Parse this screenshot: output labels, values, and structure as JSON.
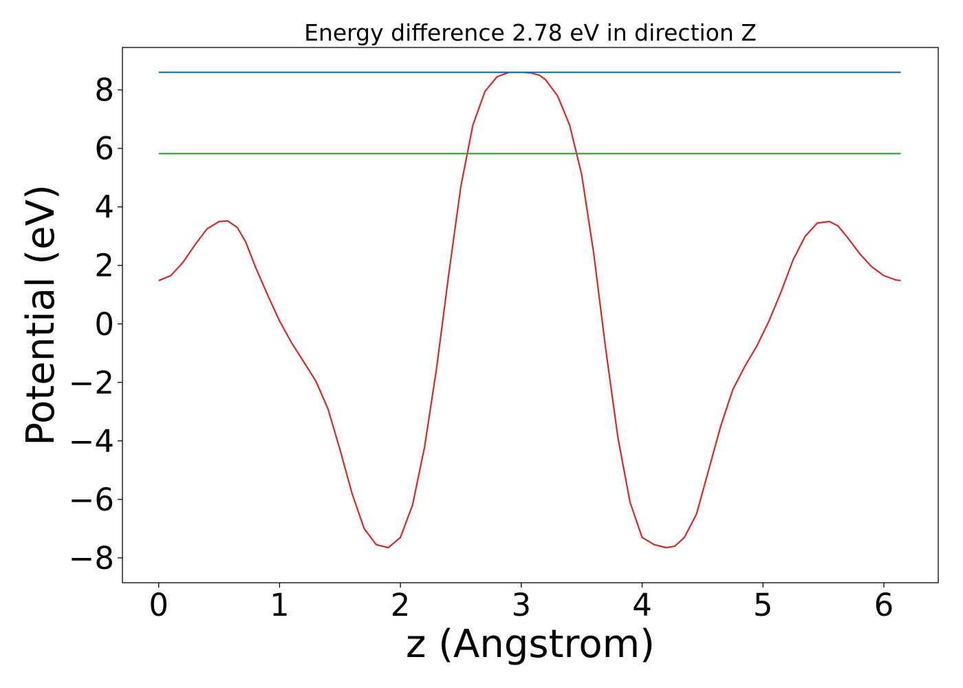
{
  "chart_data": {
    "type": "line",
    "title": "Energy difference 2.78 eV in direction Z",
    "xlabel": "z (Angstrom)",
    "ylabel": "Potential (eV)",
    "xlim": [
      -0.3,
      6.45
    ],
    "ylim": [
      -8.85,
      9.45
    ],
    "xticks": [
      0,
      1,
      2,
      3,
      4,
      5,
      6
    ],
    "xtick_labels": [
      "0",
      "1",
      "2",
      "3",
      "4",
      "5",
      "6"
    ],
    "yticks": [
      -8,
      -6,
      -4,
      -2,
      0,
      2,
      4,
      6,
      8
    ],
    "ytick_labels": [
      "−8",
      "−6",
      "−4",
      "−2",
      "0",
      "2",
      "4",
      "6",
      "8"
    ],
    "grid": false,
    "series": [
      {
        "color": "#d62728",
        "x": [
          0.0,
          0.1,
          0.2,
          0.3,
          0.4,
          0.5,
          0.57,
          0.65,
          0.72,
          0.8,
          0.9,
          1.0,
          1.1,
          1.2,
          1.3,
          1.4,
          1.5,
          1.6,
          1.7,
          1.8,
          1.9,
          2.0,
          2.1,
          2.2,
          2.3,
          2.4,
          2.5,
          2.6,
          2.7,
          2.8,
          2.9,
          3.0,
          3.08,
          3.15,
          3.2,
          3.3,
          3.4,
          3.5,
          3.6,
          3.7,
          3.8,
          3.9,
          4.0,
          4.1,
          4.2,
          4.27,
          4.35,
          4.45,
          4.55,
          4.65,
          4.75,
          4.85,
          4.95,
          5.05,
          5.15,
          5.25,
          5.35,
          5.45,
          5.55,
          5.62,
          5.7,
          5.8,
          5.9,
          6.0,
          6.1,
          6.14
        ],
        "y": [
          1.48,
          1.65,
          2.1,
          2.7,
          3.25,
          3.5,
          3.52,
          3.3,
          2.8,
          1.95,
          1.0,
          0.1,
          -0.65,
          -1.3,
          -1.95,
          -2.9,
          -4.3,
          -5.8,
          -7.0,
          -7.55,
          -7.65,
          -7.3,
          -6.2,
          -4.2,
          -1.5,
          1.7,
          4.7,
          6.8,
          7.95,
          8.45,
          8.6,
          8.6,
          8.58,
          8.5,
          8.35,
          7.8,
          6.8,
          5.1,
          2.4,
          -0.9,
          -3.9,
          -6.1,
          -7.3,
          -7.55,
          -7.65,
          -7.6,
          -7.3,
          -6.5,
          -5.0,
          -3.5,
          -2.25,
          -1.45,
          -0.75,
          0.1,
          1.1,
          2.2,
          3.0,
          3.45,
          3.5,
          3.35,
          2.95,
          2.4,
          1.95,
          1.65,
          1.5,
          1.48
        ]
      },
      {
        "color": "#1f77b4",
        "x": [
          0.0,
          6.14
        ],
        "y": [
          8.6,
          8.6
        ]
      },
      {
        "color": "#2ca02c",
        "x": [
          0.0,
          6.14
        ],
        "y": [
          5.82,
          5.82
        ]
      }
    ]
  }
}
